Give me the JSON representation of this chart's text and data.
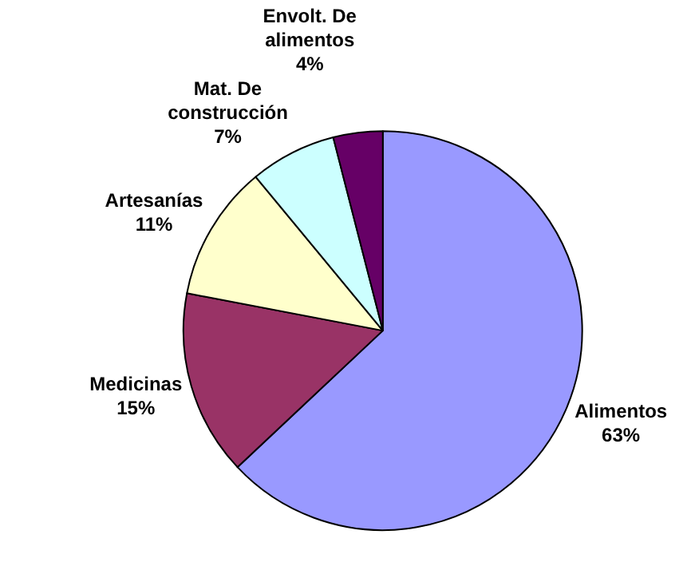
{
  "chart_data": {
    "type": "pie",
    "categories": [
      "Alimentos",
      "Medicinas",
      "Artesanías",
      "Mat. De construcción",
      "Envolt. De alimentos"
    ],
    "values": [
      63,
      15,
      11,
      7,
      4
    ],
    "colors": [
      "#9999ff",
      "#993366",
      "#ffffcc",
      "#ccffff",
      "#660066"
    ],
    "value_labels": [
      "63%",
      "15%",
      "11%",
      "7%",
      "4%"
    ],
    "legend": false
  }
}
